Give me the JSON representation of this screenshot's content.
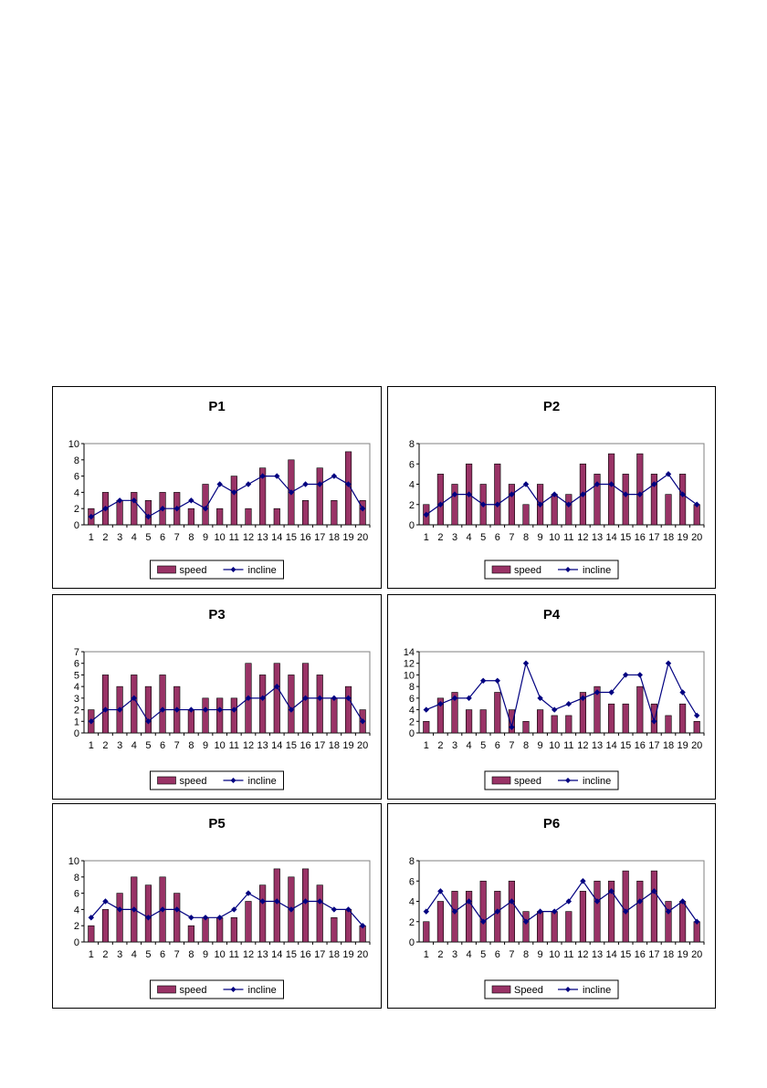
{
  "chart_data": [
    {
      "type": "bar",
      "title": "P1",
      "categories": [
        "1",
        "2",
        "3",
        "4",
        "5",
        "6",
        "7",
        "8",
        "9",
        "10",
        "11",
        "12",
        "13",
        "14",
        "15",
        "16",
        "17",
        "18",
        "19",
        "20"
      ],
      "ylim": [
        0,
        10
      ],
      "yticks": [
        0,
        2,
        4,
        6,
        8,
        10
      ],
      "series": [
        {
          "name": "speed",
          "kind": "bar",
          "values": [
            2,
            4,
            3,
            4,
            3,
            4,
            4,
            2,
            5,
            2,
            6,
            2,
            7,
            2,
            8,
            3,
            7,
            3,
            9,
            3
          ]
        },
        {
          "name": "incline",
          "kind": "line",
          "values": [
            1,
            2,
            3,
            3,
            1,
            2,
            2,
            3,
            2,
            5,
            4,
            5,
            6,
            6,
            4,
            5,
            5,
            6,
            5,
            2
          ]
        }
      ],
      "legend": "bottom"
    },
    {
      "type": "bar",
      "title": "P2",
      "categories": [
        "1",
        "2",
        "3",
        "4",
        "5",
        "6",
        "7",
        "8",
        "9",
        "10",
        "11",
        "12",
        "13",
        "14",
        "15",
        "16",
        "17",
        "18",
        "19",
        "20"
      ],
      "ylim": [
        0,
        8
      ],
      "yticks": [
        0,
        2,
        4,
        6,
        8
      ],
      "series": [
        {
          "name": "speed",
          "kind": "bar",
          "values": [
            2,
            5,
            4,
            6,
            4,
            6,
            4,
            2,
            4,
            3,
            3,
            6,
            5,
            7,
            5,
            7,
            5,
            3,
            5,
            2
          ]
        },
        {
          "name": "incline",
          "kind": "line",
          "values": [
            1,
            2,
            3,
            3,
            2,
            2,
            3,
            4,
            2,
            3,
            2,
            3,
            4,
            4,
            3,
            3,
            4,
            5,
            3,
            2
          ]
        }
      ],
      "legend": "bottom"
    },
    {
      "type": "bar",
      "title": "P3",
      "categories": [
        "1",
        "2",
        "3",
        "4",
        "5",
        "6",
        "7",
        "8",
        "9",
        "10",
        "11",
        "12",
        "13",
        "14",
        "15",
        "16",
        "17",
        "18",
        "19",
        "20"
      ],
      "ylim": [
        0,
        7
      ],
      "yticks": [
        0,
        1,
        2,
        3,
        4,
        5,
        6,
        7
      ],
      "series": [
        {
          "name": "speed",
          "kind": "bar",
          "values": [
            2,
            5,
            4,
            5,
            4,
            5,
            4,
            2,
            3,
            3,
            3,
            6,
            5,
            6,
            5,
            6,
            5,
            3,
            4,
            2
          ]
        },
        {
          "name": "incline",
          "kind": "line",
          "values": [
            1,
            2,
            2,
            3,
            1,
            2,
            2,
            2,
            2,
            2,
            2,
            3,
            3,
            4,
            2,
            3,
            3,
            3,
            3,
            1
          ]
        }
      ],
      "legend": "bottom"
    },
    {
      "type": "bar",
      "title": "P4",
      "categories": [
        "1",
        "2",
        "3",
        "4",
        "5",
        "6",
        "7",
        "8",
        "9",
        "10",
        "11",
        "12",
        "13",
        "14",
        "15",
        "16",
        "17",
        "18",
        "19",
        "20"
      ],
      "ylim": [
        0,
        14
      ],
      "yticks": [
        0,
        2,
        4,
        6,
        8,
        10,
        12,
        14
      ],
      "series": [
        {
          "name": "speed",
          "kind": "bar",
          "values": [
            2,
            6,
            7,
            4,
            4,
            7,
            4,
            2,
            4,
            3,
            3,
            7,
            8,
            5,
            5,
            8,
            5,
            3,
            5,
            2
          ]
        },
        {
          "name": "incline",
          "kind": "line",
          "values": [
            4,
            5,
            6,
            6,
            9,
            9,
            1,
            12,
            6,
            4,
            5,
            6,
            7,
            7,
            10,
            10,
            2,
            12,
            7,
            3
          ]
        }
      ],
      "legend": "bottom"
    },
    {
      "type": "bar",
      "title": "P5",
      "categories": [
        "1",
        "2",
        "3",
        "4",
        "5",
        "6",
        "7",
        "8",
        "9",
        "10",
        "11",
        "12",
        "13",
        "14",
        "15",
        "16",
        "17",
        "18",
        "19",
        "20"
      ],
      "ylim": [
        0,
        10
      ],
      "yticks": [
        0,
        2,
        4,
        6,
        8,
        10
      ],
      "series": [
        {
          "name": "speed",
          "kind": "bar",
          "values": [
            2,
            4,
            6,
            8,
            7,
            8,
            6,
            2,
            3,
            3,
            3,
            5,
            7,
            9,
            8,
            9,
            7,
            3,
            4,
            2
          ]
        },
        {
          "name": "incline",
          "kind": "line",
          "values": [
            3,
            5,
            4,
            4,
            3,
            4,
            4,
            3,
            3,
            3,
            4,
            6,
            5,
            5,
            4,
            5,
            5,
            4,
            4,
            2
          ]
        }
      ],
      "legend": "bottom"
    },
    {
      "type": "bar",
      "title": "P6",
      "categories": [
        "1",
        "2",
        "3",
        "4",
        "5",
        "6",
        "7",
        "8",
        "9",
        "10",
        "11",
        "12",
        "13",
        "14",
        "15",
        "16",
        "17",
        "18",
        "19",
        "20"
      ],
      "ylim": [
        0,
        8
      ],
      "yticks": [
        0,
        2,
        4,
        6,
        8
      ],
      "series": [
        {
          "name": "Speed",
          "kind": "bar",
          "values": [
            2,
            4,
            5,
            5,
            6,
            5,
            6,
            3,
            3,
            3,
            3,
            5,
            6,
            6,
            7,
            6,
            7,
            4,
            4,
            2
          ]
        },
        {
          "name": "incline",
          "kind": "line",
          "values": [
            3,
            5,
            3,
            4,
            2,
            3,
            4,
            2,
            3,
            3,
            4,
            6,
            4,
            5,
            3,
            4,
            5,
            3,
            4,
            2
          ]
        }
      ],
      "legend": "bottom"
    }
  ],
  "colors": {
    "bar_fill": "#993366",
    "line": "#000080",
    "plot_border": "#808080"
  }
}
